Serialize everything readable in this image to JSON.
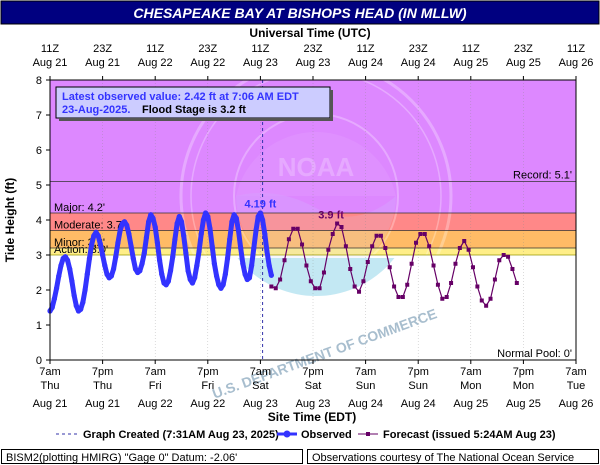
{
  "chart_data": {
    "type": "line",
    "title": "CHESAPEAKE BAY AT BISHOPS HEAD (IN MLLW)",
    "top_axis_label": "Universal Time (UTC)",
    "xlabel": "Site Time (EDT)",
    "ylabel": "Tide Height (ft)",
    "ylim": [
      0,
      8
    ],
    "y_ticks": [
      "0",
      "1",
      "2",
      "3",
      "4",
      "5",
      "6",
      "7",
      "8"
    ],
    "x_range": [
      "Aug 21 07:00 EDT",
      "Aug 26 07:00 EDT"
    ],
    "top_ticks": [
      {
        "t": "11Z",
        "d": "Aug 21"
      },
      {
        "t": "23Z",
        "d": "Aug 21"
      },
      {
        "t": "11Z",
        "d": "Aug 22"
      },
      {
        "t": "23Z",
        "d": "Aug 22"
      },
      {
        "t": "11Z",
        "d": "Aug 23"
      },
      {
        "t": "23Z",
        "d": "Aug 23"
      },
      {
        "t": "11Z",
        "d": "Aug 24"
      },
      {
        "t": "23Z",
        "d": "Aug 24"
      },
      {
        "t": "11Z",
        "d": "Aug 25"
      },
      {
        "t": "23Z",
        "d": "Aug 25"
      },
      {
        "t": "11Z",
        "d": "Aug 26"
      }
    ],
    "bottom_ticks": [
      {
        "t": "7am",
        "w": "Thu",
        "d": "Aug 21"
      },
      {
        "t": "7pm",
        "w": "Thu",
        "d": "Aug 21"
      },
      {
        "t": "7am",
        "w": "Fri",
        "d": "Aug 22"
      },
      {
        "t": "7pm",
        "w": "Fri",
        "d": "Aug 22"
      },
      {
        "t": "7am",
        "w": "Sat",
        "d": "Aug 23"
      },
      {
        "t": "7pm",
        "w": "Sat",
        "d": "Aug 23"
      },
      {
        "t": "7am",
        "w": "Sun",
        "d": "Aug 24"
      },
      {
        "t": "7pm",
        "w": "Sun",
        "d": "Aug 24"
      },
      {
        "t": "7am",
        "w": "Mon",
        "d": "Aug 25"
      },
      {
        "t": "7pm",
        "w": "Mon",
        "d": "Aug 25"
      },
      {
        "t": "7am",
        "w": "Tue",
        "d": "Aug 26"
      }
    ],
    "stages": [
      {
        "name": "Action: 3.0'",
        "value": 3.0,
        "color": "#ffff00"
      },
      {
        "name": "Minor: 3.2'",
        "value": 3.2,
        "color": "#ff9900"
      },
      {
        "name": "Moderate: 3.7'",
        "value": 3.7,
        "color": "#ff0000"
      },
      {
        "name": "Major: 4.2'",
        "value": 4.2,
        "color": "#cc33ff"
      }
    ],
    "record": {
      "label": "Record: 5.1'",
      "value": 5.1
    },
    "normal_pool": {
      "label": "Normal Pool: 0'",
      "value": 0
    },
    "graph_created_hours": 48.5,
    "observed": {
      "name": "Observed",
      "color": "#3333ff",
      "points": [
        [
          0,
          1.4
        ],
        [
          0.5,
          1.5
        ],
        [
          1,
          1.75
        ],
        [
          1.5,
          2.05
        ],
        [
          2,
          2.4
        ],
        [
          2.5,
          2.7
        ],
        [
          3,
          2.9
        ],
        [
          3.5,
          2.95
        ],
        [
          4,
          2.85
        ],
        [
          4.5,
          2.6
        ],
        [
          5,
          2.25
        ],
        [
          5.5,
          1.85
        ],
        [
          6,
          1.55
        ],
        [
          6.5,
          1.4
        ],
        [
          7,
          1.45
        ],
        [
          7.5,
          1.65
        ],
        [
          8,
          2.0
        ],
        [
          8.5,
          2.45
        ],
        [
          9,
          2.9
        ],
        [
          9.5,
          3.3
        ],
        [
          10,
          3.55
        ],
        [
          10.5,
          3.65
        ],
        [
          11,
          3.55
        ],
        [
          11.5,
          3.3
        ],
        [
          12,
          3.0
        ],
        [
          12.5,
          2.7
        ],
        [
          13,
          2.45
        ],
        [
          13.5,
          2.35
        ],
        [
          14,
          2.4
        ],
        [
          14.5,
          2.6
        ],
        [
          15,
          2.95
        ],
        [
          15.5,
          3.35
        ],
        [
          16,
          3.7
        ],
        [
          16.5,
          3.9
        ],
        [
          17,
          3.95
        ],
        [
          17.5,
          3.85
        ],
        [
          18,
          3.6
        ],
        [
          18.5,
          3.25
        ],
        [
          19,
          2.9
        ],
        [
          19.5,
          2.6
        ],
        [
          20,
          2.5
        ],
        [
          20.5,
          2.55
        ],
        [
          21,
          2.75
        ],
        [
          21.5,
          3.05
        ],
        [
          22,
          3.5
        ],
        [
          22.5,
          3.95
        ],
        [
          23,
          4.15
        ],
        [
          23.5,
          4.05
        ],
        [
          24,
          3.8
        ],
        [
          24.5,
          3.35
        ],
        [
          25,
          2.85
        ],
        [
          25.5,
          2.45
        ],
        [
          26,
          2.2
        ],
        [
          26.5,
          2.15
        ],
        [
          27,
          2.25
        ],
        [
          27.5,
          2.55
        ],
        [
          28,
          2.95
        ],
        [
          28.5,
          3.45
        ],
        [
          29,
          3.9
        ],
        [
          29.5,
          4.1
        ],
        [
          30,
          3.95
        ],
        [
          30.5,
          3.55
        ],
        [
          31,
          3.05
        ],
        [
          31.5,
          2.55
        ],
        [
          32,
          2.3
        ],
        [
          32.5,
          2.2
        ],
        [
          33,
          2.35
        ],
        [
          33.5,
          2.7
        ],
        [
          34,
          3.1
        ],
        [
          34.5,
          3.6
        ],
        [
          35,
          4.0
        ],
        [
          35.5,
          4.2
        ],
        [
          36,
          4.1
        ],
        [
          36.5,
          3.75
        ],
        [
          37,
          3.25
        ],
        [
          37.5,
          2.75
        ],
        [
          38,
          2.4
        ],
        [
          38.5,
          2.15
        ],
        [
          39,
          2.05
        ],
        [
          39.5,
          2.15
        ],
        [
          40,
          2.45
        ],
        [
          40.5,
          2.9
        ],
        [
          41,
          3.45
        ],
        [
          41.5,
          3.95
        ],
        [
          42,
          4.15
        ],
        [
          42.5,
          4.05
        ],
        [
          43,
          3.7
        ],
        [
          43.5,
          3.2
        ],
        [
          44,
          2.75
        ],
        [
          44.5,
          2.45
        ],
        [
          45,
          2.3
        ],
        [
          45.5,
          2.35
        ],
        [
          46,
          2.7
        ],
        [
          46.5,
          3.2
        ],
        [
          47,
          3.7
        ],
        [
          47.5,
          4.1
        ],
        [
          48,
          4.2
        ],
        [
          48.5,
          4.0
        ],
        [
          49,
          3.6
        ],
        [
          49.5,
          3.1
        ],
        [
          50,
          2.7
        ],
        [
          50.5,
          2.42
        ]
      ],
      "label": "4.19 ft",
      "label_at": [
        48,
        4.19
      ]
    },
    "forecast": {
      "name": "Forecast (issued 5:24AM Aug 23)",
      "color": "#660066",
      "points": [
        [
          50.5,
          2.1
        ],
        [
          51.5,
          2.05
        ],
        [
          52.5,
          2.3
        ],
        [
          53.5,
          2.85
        ],
        [
          54.5,
          3.45
        ],
        [
          55.5,
          3.75
        ],
        [
          56.5,
          3.75
        ],
        [
          57.5,
          3.3
        ],
        [
          58.5,
          2.7
        ],
        [
          59.5,
          2.25
        ],
        [
          60.5,
          2.05
        ],
        [
          61.5,
          2.05
        ],
        [
          62.5,
          2.5
        ],
        [
          63.5,
          3.15
        ],
        [
          64.5,
          3.6
        ],
        [
          65.5,
          3.9
        ],
        [
          66.5,
          3.8
        ],
        [
          67.5,
          3.25
        ],
        [
          68.5,
          2.6
        ],
        [
          69.5,
          2.1
        ],
        [
          70.5,
          1.95
        ],
        [
          71.5,
          2.25
        ],
        [
          72.5,
          2.8
        ],
        [
          73.5,
          3.25
        ],
        [
          74.5,
          3.55
        ],
        [
          75.5,
          3.55
        ],
        [
          76.5,
          3.2
        ],
        [
          77.5,
          2.65
        ],
        [
          78.5,
          2.1
        ],
        [
          79.5,
          1.8
        ],
        [
          80.5,
          1.8
        ],
        [
          81.5,
          2.15
        ],
        [
          82.5,
          2.75
        ],
        [
          83.5,
          3.35
        ],
        [
          84.5,
          3.6
        ],
        [
          85.5,
          3.6
        ],
        [
          86.5,
          3.25
        ],
        [
          87.5,
          2.7
        ],
        [
          88.5,
          2.15
        ],
        [
          89.5,
          1.75
        ],
        [
          90.5,
          1.8
        ],
        [
          91.5,
          2.2
        ],
        [
          92.5,
          2.75
        ],
        [
          93.5,
          3.2
        ],
        [
          94.5,
          3.4
        ],
        [
          95.5,
          3.15
        ],
        [
          96.5,
          2.65
        ],
        [
          97.5,
          2.1
        ],
        [
          98.5,
          1.7
        ],
        [
          99.5,
          1.55
        ],
        [
          100.5,
          1.75
        ],
        [
          101.5,
          2.3
        ],
        [
          102.5,
          2.85
        ],
        [
          103.5,
          3.0
        ],
        [
          104.5,
          2.95
        ],
        [
          105.5,
          2.6
        ],
        [
          106.5,
          2.2
        ]
      ],
      "label": "3.9 ft",
      "label_at": [
        65.5,
        3.9
      ]
    },
    "info_box": {
      "line1": "Latest observed value: 2.42 ft at 7:06 AM EDT",
      "line2": "23-Aug-2025.",
      "line3": "Flood Stage is 3.2 ft"
    },
    "legend": {
      "created": "Graph Created (7:31AM Aug 23, 2025)",
      "observed": "Observed",
      "forecast": "Forecast (issued 5:24AM Aug 23)"
    },
    "footer_left": "BISM2(plotting HMIRG) \"Gage 0\" Datum: -2.06'",
    "footer_right": "Observations courtesy of The National Ocean Service"
  }
}
